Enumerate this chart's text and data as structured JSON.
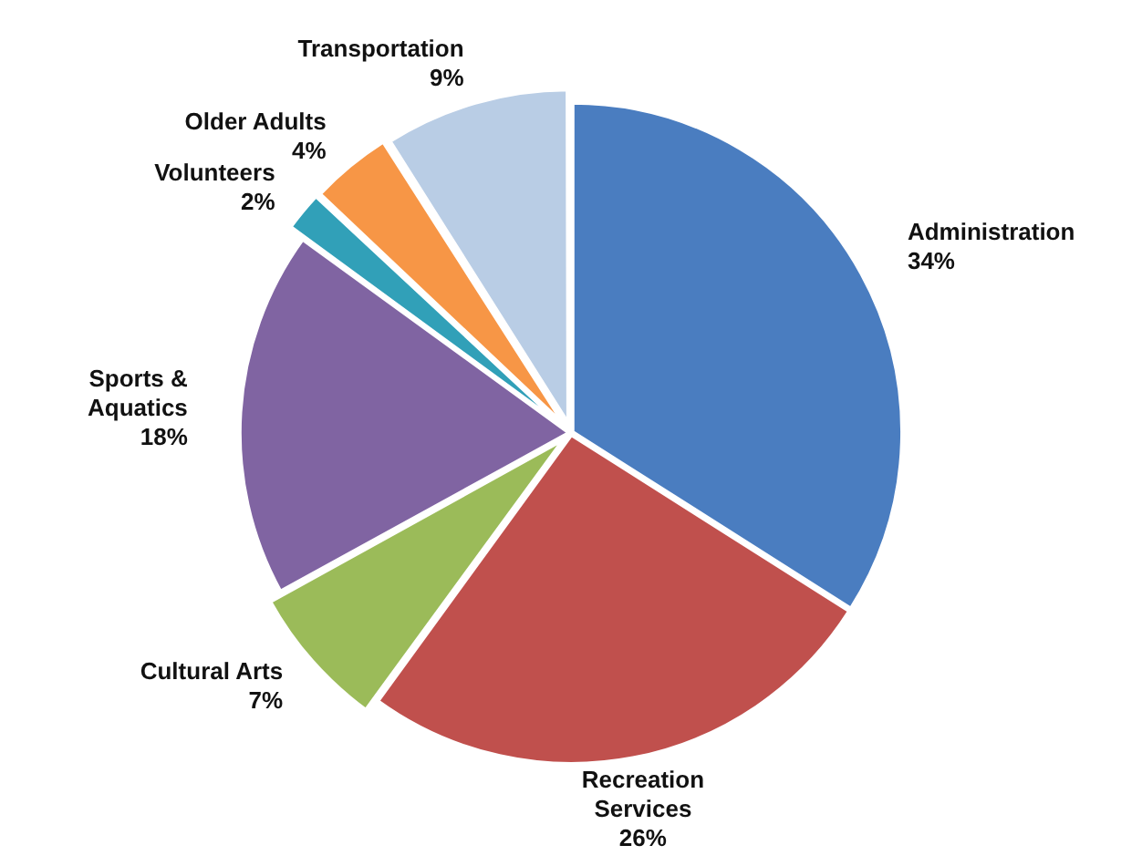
{
  "chart_data": {
    "type": "pie",
    "categories": [
      "Administration",
      "Recreation Services",
      "Cultural Arts",
      "Sports & Aquatics",
      "Volunteers",
      "Older Adults",
      "Transportation"
    ],
    "values": [
      34,
      26,
      7,
      18,
      2,
      4,
      9
    ],
    "value_labels": [
      "34%",
      "26%",
      "7%",
      "18%",
      "2%",
      "4%",
      "9%"
    ],
    "colors": [
      "#4a7dc0",
      "#c0504d",
      "#9bbb59",
      "#8064a2",
      "#31a0b8",
      "#f79646",
      "#b9cde5"
    ],
    "legend": false
  }
}
